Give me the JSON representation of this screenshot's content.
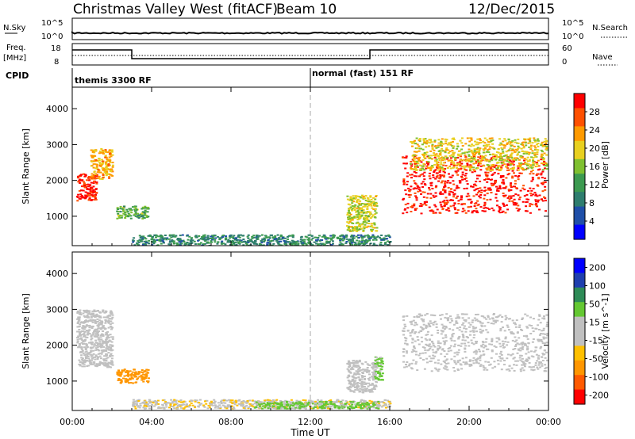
{
  "header": {
    "title": "Christmas Valley West (fitACF)",
    "beam": "Beam 10",
    "date": "12/Dec/2015"
  },
  "strips": {
    "nsky_label": "N.Sky",
    "nsky_ticks": [
      "10^5",
      "10^0"
    ],
    "nsky_right_ticks": [
      "10^5",
      "10^0"
    ],
    "nsearch_label": "N.Search",
    "freq_label_1": "Freq.",
    "freq_label_2": "[MHz]",
    "freq_ticks": [
      "18",
      "8"
    ],
    "nave_ticks": [
      "60",
      "0"
    ],
    "nave_label": "Nave",
    "cpid_label": "CPID",
    "cpid_1": "themis 3300 RF",
    "cpid_2": "normal (fast) 151 RF"
  },
  "colors": {
    "power_scale": [
      "#0000ff",
      "#1f4fa8",
      "#2e7d6e",
      "#3c9a50",
      "#7fc030",
      "#e8d020",
      "#ff9a00",
      "#ff5000",
      "#ff0000"
    ],
    "velocity_scale": [
      "#ff0000",
      "#ff5a00",
      "#ff9600",
      "#ffc000",
      "#c0c0c0",
      "#c0c0c0",
      "#64c832",
      "#2e8b57",
      "#1f3fae",
      "#0000ff"
    ],
    "ground_scatter": "#c0c0c0"
  },
  "chart_data": [
    {
      "type": "heatmap",
      "panel": "power",
      "title": "",
      "xlabel": "",
      "ylabel": "Slant Range [km]",
      "x_ticks": [
        "00:00",
        "04:00",
        "08:00",
        "12:00",
        "16:00",
        "20:00",
        "00:00"
      ],
      "xlim_hours_ut": [
        0,
        24
      ],
      "ylim_km": [
        180,
        4600
      ],
      "y_ticks": [
        "1000",
        "2000",
        "3000",
        "4000"
      ],
      "colorbar_label": "Power [dB]",
      "colorbar_ticks": [
        "4",
        "8",
        "12",
        "16",
        "20",
        "24",
        "28"
      ],
      "colorbar_range": [
        0,
        32
      ],
      "regions": [
        {
          "t": [
            0.2,
            1.2
          ],
          "r": [
            1450,
            2200
          ],
          "value": 30
        },
        {
          "t": [
            0.9,
            2.0
          ],
          "r": [
            2050,
            2900
          ],
          "value": 22
        },
        {
          "t": [
            2.2,
            3.8
          ],
          "r": [
            950,
            1300
          ],
          "value": 14
        },
        {
          "t": [
            3.0,
            16.0
          ],
          "r": [
            200,
            500
          ],
          "value": 10
        },
        {
          "t": [
            13.8,
            15.3
          ],
          "r": [
            600,
            1600
          ],
          "value": 18
        },
        {
          "t": [
            16.6,
            23.8
          ],
          "r": [
            1100,
            2700
          ],
          "value": 30
        },
        {
          "t": [
            17.0,
            23.9
          ],
          "r": [
            2300,
            3200
          ],
          "value": 20
        }
      ]
    },
    {
      "type": "heatmap",
      "panel": "velocity",
      "title": "",
      "xlabel": "Time UT",
      "ylabel": "Slant Range [km]",
      "x_ticks": [
        "00:00",
        "04:00",
        "08:00",
        "12:00",
        "16:00",
        "20:00",
        "00:00"
      ],
      "xlim_hours_ut": [
        0,
        24
      ],
      "ylim_km": [
        180,
        4600
      ],
      "y_ticks": [
        "1000",
        "2000",
        "3000",
        "4000"
      ],
      "colorbar_label": "Velocity [m s^-1]",
      "colorbar_ticks": [
        "200",
        "100",
        "50",
        "15",
        "-15",
        "-50",
        "-100",
        "-200"
      ],
      "colorbar_range": [
        -250,
        250
      ],
      "regions": [
        {
          "t": [
            0.2,
            2.0
          ],
          "r": [
            1400,
            3000
          ],
          "value": 0
        },
        {
          "t": [
            2.2,
            3.8
          ],
          "r": [
            950,
            1350
          ],
          "value": -120
        },
        {
          "t": [
            3.0,
            16.0
          ],
          "r": [
            250,
            500
          ],
          "value": -40
        },
        {
          "t": [
            9.0,
            15.5
          ],
          "r": [
            250,
            450
          ],
          "value": 60
        },
        {
          "t": [
            13.8,
            15.3
          ],
          "r": [
            700,
            1600
          ],
          "value": 0
        },
        {
          "t": [
            15.2,
            15.6
          ],
          "r": [
            1050,
            1750
          ],
          "value": 60
        },
        {
          "t": [
            16.6,
            23.9
          ],
          "r": [
            1300,
            2900
          ],
          "value": 0
        }
      ]
    }
  ]
}
